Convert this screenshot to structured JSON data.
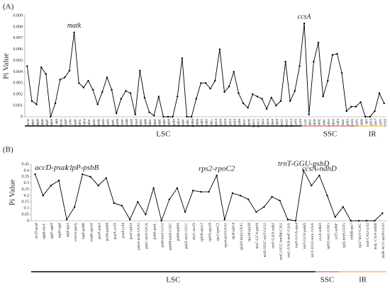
{
  "chart_data": [
    {
      "type": "line",
      "panel_label": "(A)",
      "ylabel": "Pi Value",
      "color": "#000000",
      "grid": false,
      "ylim": [
        0,
        0.009
      ],
      "yticks": [
        0,
        0.001,
        0.002,
        0.003,
        0.004,
        0.005,
        0.006,
        0.007,
        0.008,
        0.009
      ],
      "categories": [
        "accD",
        "atpA",
        "atpB",
        "atpE",
        "atpF",
        "atpH",
        "atpI",
        "cemA",
        "clpP",
        "infA",
        "matK",
        "ndhC",
        "ndhJ",
        "ndhK",
        "petA",
        "petB",
        "petD",
        "petG",
        "petL",
        "petN",
        "psaA",
        "psaB",
        "psaI",
        "psaJ",
        "psbA",
        "psbB",
        "psbC",
        "psbD",
        "psbE",
        "psbF",
        "psbH",
        "psbI",
        "psbJ",
        "psbK",
        "psbL",
        "psbM",
        "psbN",
        "psbT",
        "psbZ",
        "rbcL",
        "rpl14",
        "rpl16",
        "rpl20",
        "rpl22",
        "rpl33",
        "rpl36",
        "rpoA",
        "rpoB",
        "rpoC1",
        "rpoC2",
        "rps2",
        "rps3",
        "rps4",
        "rps8",
        "rps11",
        "rps12",
        "rps14",
        "ycf3",
        "ycf4",
        "ccsA",
        "ndhA",
        "ndhD",
        "ndhE",
        "ndhF",
        "ndhG",
        "ndhH",
        "ndhI",
        "psaC",
        "rpl32",
        "rps15",
        "ycf1",
        "ndhB",
        "rpl2",
        "rpl23",
        "rps7",
        "ycf2",
        "ycf15"
      ],
      "values": [
        0.0045,
        0.0014,
        0.0011,
        0.0044,
        0.0038,
        0,
        0.0012,
        0.0033,
        0.0035,
        0.0041,
        0.0075,
        0.003,
        0.0026,
        0.0032,
        0.0024,
        0.0011,
        0.0022,
        0.0035,
        0.0024,
        0.0003,
        0.0016,
        0.0023,
        0.0021,
        0.0002,
        0.0041,
        0.0017,
        0.0004,
        0.0001,
        0.0018,
        0,
        0,
        0,
        0.0018,
        0.0052,
        0,
        0,
        0.0016,
        0.003,
        0.003,
        0.0025,
        0.0032,
        0.006,
        0.0022,
        0.0027,
        0.004,
        0.0021,
        0.0012,
        0.0008,
        0.002,
        0.0018,
        0.0016,
        0.0007,
        0.0017,
        0.001,
        0.0014,
        0.0049,
        0.0014,
        0.0023,
        0.0045,
        0.0083,
        0.0002,
        0.0049,
        0.0066,
        0.0018,
        0.0032,
        0.0055,
        0.0056,
        0.0039,
        0.0005,
        0.0009,
        0.0009,
        0.0013,
        0,
        0,
        0.0005,
        0.0021,
        0.0012
      ],
      "annotations": [
        {
          "text": "matk",
          "category": "matK"
        },
        {
          "text": "ccsA",
          "category": "ccsA"
        }
      ],
      "regions": [
        {
          "label": "LSC",
          "first": "accD",
          "last": "ycf4",
          "color": "#000000"
        },
        {
          "label": "SSC",
          "first": "ccsA",
          "last": "ycf1",
          "color": "#e8787c"
        },
        {
          "label": "IR",
          "first": "ndhB",
          "last": "ycf15",
          "color": "#f2c45a"
        }
      ]
    },
    {
      "type": "line",
      "panel_label": "(B)",
      "ylabel": "Pi Value",
      "color": "#000000",
      "grid": false,
      "ylim": [
        0,
        0.45
      ],
      "yticks": [
        0,
        0.05,
        0.1,
        0.15,
        0.2,
        0.25,
        0.3,
        0.35,
        0.4,
        0.45
      ],
      "categories": [
        "accD-psaI",
        "atpB-rbcL",
        "atpF-atpH",
        "atpH-atpI",
        "atpI-rps2",
        "cemA-petA",
        "clpP-psbB",
        "matK-rps16",
        "petA-psbJ",
        "petN-psbM",
        "psaA-ycf3",
        "psaI-ycf4",
        "psaJ-rpl33",
        "psbA-trnK-UUU",
        "psbC-trnS-UGA",
        "psbE-petL",
        "psbI-trnS-GCU",
        "psbM-trnD-GUC",
        "psbN-psbH",
        "psbZ-trnG-GCC",
        "rbcL-accD",
        "rpl20-rps12",
        "rpl33-rps18",
        "rps2-rpoC2",
        "rps4-trnT-UGU",
        "rps8-rpl14",
        "rps16-trnQ-UUG",
        "rps18-rpl20",
        "trnC-GCA-petN",
        "trnE-UUC-trnT-GGU",
        "trnF-GAA-ndhJ",
        "trnG-UCC-trnfM-CAU",
        "trnL-UAA-trnF-GAA",
        "trnS-GGA-rps4",
        "trnT-GGU-psbD",
        "trnT-UGU-trnL-UAA",
        "ccsA-ndhD",
        "rpl32-trnL-UAG",
        "ycf1-ndhF",
        "rpl2-trnH-GUG",
        "ndhB-rps7",
        "rps7-trnV-GAC",
        "trnI-CAU-ycf2",
        "trnL-CAA-ndhB",
        "trnR-ACG-trnN-GUU"
      ],
      "values": [
        0.37,
        0.2,
        0.28,
        0.32,
        0.01,
        0.11,
        0.37,
        0.35,
        0.28,
        0.34,
        0.14,
        0.12,
        0.01,
        0.15,
        0.05,
        0.26,
        0,
        0.17,
        0.26,
        0.07,
        0.24,
        0.23,
        0.23,
        0.36,
        0.01,
        0.22,
        0.2,
        0.17,
        0.07,
        0.11,
        0.19,
        0.16,
        0.01,
        0,
        0.4,
        0.28,
        0.36,
        0.2,
        0.03,
        0.11,
        0,
        0,
        0,
        0,
        0.06
      ],
      "annotations": [
        {
          "text": "accD-psaI",
          "category": "accD-psaI"
        },
        {
          "text": "clpP-psbB",
          "category": "clpP-psbB"
        },
        {
          "text": "rps2-rpoC2",
          "category": "rps2-rpoC2"
        },
        {
          "text": "trnT-GGU-psbD",
          "category": "trnT-GGU-psbD"
        },
        {
          "text": "ccsA-ndhD",
          "category": "ccsA-ndhD"
        }
      ],
      "regions": [
        {
          "label": "LSC",
          "first": "accD-psaI",
          "last": "trnT-UGU-trnL-UAA",
          "color": "#000000"
        },
        {
          "label": "SSC",
          "first": "ccsA-ndhD",
          "last": "ycf1-ndhF",
          "color": "#e8787c"
        },
        {
          "label": "IR",
          "first": "rpl2-trnH-GUG",
          "last": "trnR-ACG-trnN-GUU",
          "color": "#f2c45a"
        }
      ]
    }
  ]
}
